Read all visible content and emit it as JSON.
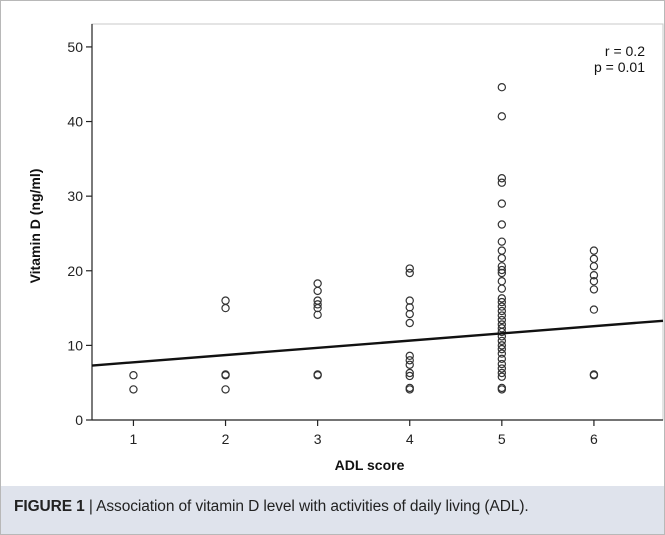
{
  "chart_data": {
    "type": "scatter",
    "xlabel": "ADL score",
    "ylabel": "Vitamin D (ng/ml)",
    "x_ticks": [
      1,
      2,
      3,
      4,
      5,
      6
    ],
    "y_ticks": [
      0,
      10,
      20,
      30,
      40,
      50
    ],
    "xlim": [
      0.55,
      6.75
    ],
    "ylim": [
      0,
      52
    ],
    "grid": false,
    "annotations": [
      "r = 0.2",
      "p = 0.01"
    ],
    "points": [
      {
        "x": 1,
        "y": 6.0
      },
      {
        "x": 1,
        "y": 4.1
      },
      {
        "x": 2,
        "y": 16.0
      },
      {
        "x": 2,
        "y": 15.0
      },
      {
        "x": 2,
        "y": 6.0
      },
      {
        "x": 2,
        "y": 6.1
      },
      {
        "x": 2,
        "y": 4.1
      },
      {
        "x": 3,
        "y": 18.3
      },
      {
        "x": 3,
        "y": 17.3
      },
      {
        "x": 3,
        "y": 16.0
      },
      {
        "x": 3,
        "y": 15.5
      },
      {
        "x": 3,
        "y": 15.0
      },
      {
        "x": 3,
        "y": 14.1
      },
      {
        "x": 3,
        "y": 6.0
      },
      {
        "x": 3,
        "y": 6.1
      },
      {
        "x": 4,
        "y": 20.3
      },
      {
        "x": 4,
        "y": 19.7
      },
      {
        "x": 4,
        "y": 16.0
      },
      {
        "x": 4,
        "y": 15.1
      },
      {
        "x": 4,
        "y": 14.2
      },
      {
        "x": 4,
        "y": 13.0
      },
      {
        "x": 4,
        "y": 8.6
      },
      {
        "x": 4,
        "y": 8.0
      },
      {
        "x": 4,
        "y": 7.4
      },
      {
        "x": 4,
        "y": 6.3
      },
      {
        "x": 4,
        "y": 5.9
      },
      {
        "x": 4,
        "y": 4.3
      },
      {
        "x": 4,
        "y": 4.1
      },
      {
        "x": 5,
        "y": 44.6
      },
      {
        "x": 5,
        "y": 40.7
      },
      {
        "x": 5,
        "y": 32.4
      },
      {
        "x": 5,
        "y": 31.8
      },
      {
        "x": 5,
        "y": 29.0
      },
      {
        "x": 5,
        "y": 26.2
      },
      {
        "x": 5,
        "y": 23.9
      },
      {
        "x": 5,
        "y": 22.7
      },
      {
        "x": 5,
        "y": 21.7
      },
      {
        "x": 5,
        "y": 20.6
      },
      {
        "x": 5,
        "y": 20.1
      },
      {
        "x": 5,
        "y": 19.7
      },
      {
        "x": 5,
        "y": 18.6
      },
      {
        "x": 5,
        "y": 17.6
      },
      {
        "x": 5,
        "y": 16.3
      },
      {
        "x": 5,
        "y": 15.8
      },
      {
        "x": 5,
        "y": 15.2
      },
      {
        "x": 5,
        "y": 14.6
      },
      {
        "x": 5,
        "y": 14.0
      },
      {
        "x": 5,
        "y": 13.4
      },
      {
        "x": 5,
        "y": 12.8
      },
      {
        "x": 5,
        "y": 12.3
      },
      {
        "x": 5,
        "y": 11.8
      },
      {
        "x": 5,
        "y": 11.2
      },
      {
        "x": 5,
        "y": 10.6
      },
      {
        "x": 5,
        "y": 10.0
      },
      {
        "x": 5,
        "y": 9.5
      },
      {
        "x": 5,
        "y": 8.9
      },
      {
        "x": 5,
        "y": 8.2
      },
      {
        "x": 5,
        "y": 7.5
      },
      {
        "x": 5,
        "y": 6.9
      },
      {
        "x": 5,
        "y": 6.3
      },
      {
        "x": 5,
        "y": 5.8
      },
      {
        "x": 5,
        "y": 4.3
      },
      {
        "x": 5,
        "y": 4.1
      },
      {
        "x": 6,
        "y": 22.7
      },
      {
        "x": 6,
        "y": 21.6
      },
      {
        "x": 6,
        "y": 20.6
      },
      {
        "x": 6,
        "y": 19.4
      },
      {
        "x": 6,
        "y": 18.6
      },
      {
        "x": 6,
        "y": 17.5
      },
      {
        "x": 6,
        "y": 14.8
      },
      {
        "x": 6,
        "y": 6.0
      },
      {
        "x": 6,
        "y": 6.1
      }
    ],
    "fit_line": {
      "x": [
        0.55,
        6.75
      ],
      "y": [
        7.3,
        13.3
      ]
    }
  },
  "caption": {
    "label": "FIGURE 1",
    "text": " | Association of vitamin D level with activities of daily living (ADL)."
  },
  "colors": {
    "marker": "#333333",
    "axis": "#222222",
    "fit_line": "#111111",
    "caption_band": "#dfe3ec"
  }
}
